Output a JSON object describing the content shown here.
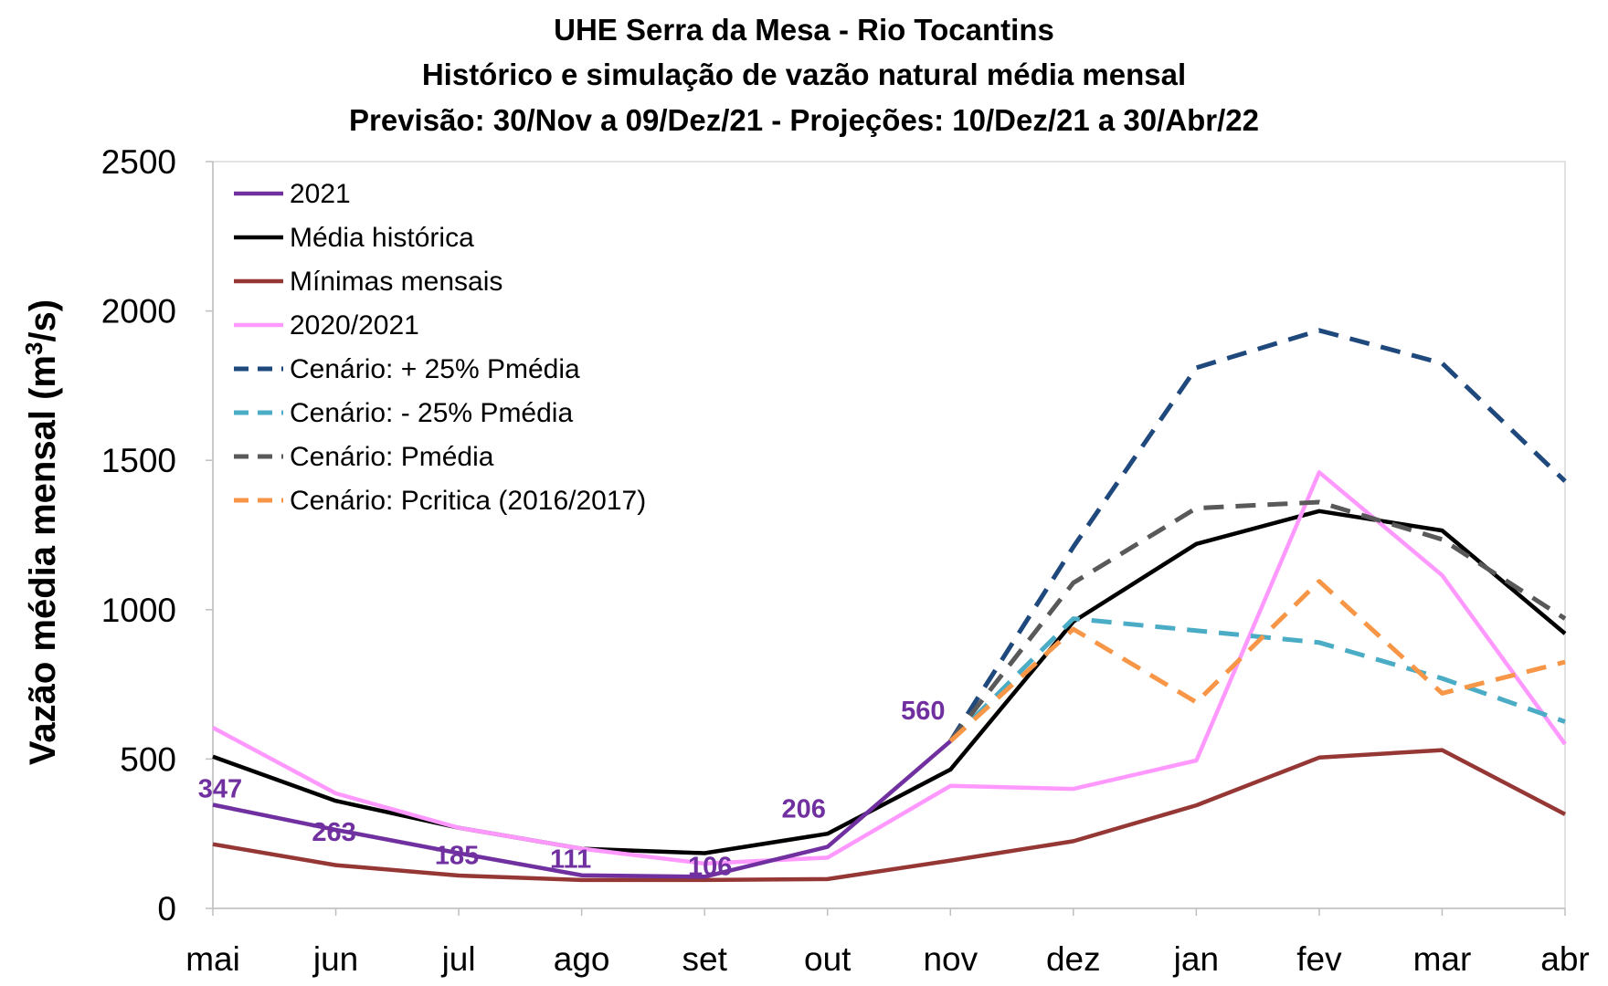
{
  "chart_data": {
    "type": "line",
    "title": [
      "UHE Serra da Mesa - Rio Tocantins",
      "Histórico e simulação de vazão natural média mensal",
      "Previsão: 30/Nov a 09/Dez/21 - Projeções:  10/Dez/21 a 30/Abr/22"
    ],
    "xlabel": "",
    "ylabel_prefix": "Vazão média mensal (m",
    "ylabel_sup": "3",
    "ylabel_suffix": "/s)",
    "ylim": [
      0,
      2500
    ],
    "yticks": [
      0,
      500,
      1000,
      1500,
      2000,
      2500
    ],
    "categories": [
      "mai",
      "jun",
      "jul",
      "ago",
      "set",
      "out",
      "nov",
      "dez",
      "jan",
      "fev",
      "mar",
      "abr"
    ],
    "grid": false,
    "legend_position": "top-left",
    "series": [
      {
        "name": "2021",
        "color": "#7030a0",
        "dash": "solid",
        "values": [
          347,
          263,
          185,
          111,
          106,
          206,
          560,
          null,
          null,
          null,
          null,
          null
        ],
        "labels": [
          "347",
          "263",
          "185",
          "111",
          "106",
          "206",
          "560",
          null,
          null,
          null,
          null,
          null
        ]
      },
      {
        "name": "Média histórica",
        "color": "#000000",
        "dash": "solid",
        "values": [
          508,
          360,
          270,
          200,
          185,
          250,
          465,
          960,
          1220,
          1330,
          1265,
          920
        ]
      },
      {
        "name": "Mínimas mensais",
        "color": "#953735",
        "dash": "solid",
        "values": [
          215,
          145,
          110,
          95,
          95,
          98,
          160,
          225,
          345,
          505,
          530,
          315
        ]
      },
      {
        "name": "2020/2021",
        "color": "#ff99ff",
        "dash": "solid",
        "values": [
          605,
          385,
          270,
          200,
          150,
          170,
          410,
          400,
          495,
          1460,
          1115,
          550
        ]
      },
      {
        "name": "Cenário: + 25% Pmédia",
        "color": "#1f497d",
        "dash": "dashed",
        "values": [
          null,
          null,
          null,
          null,
          null,
          null,
          560,
          1210,
          1810,
          1935,
          1825,
          1430
        ]
      },
      {
        "name": "Cenário: - 25% Pmédia",
        "color": "#4bacc6",
        "dash": "dashed",
        "values": [
          null,
          null,
          null,
          null,
          null,
          null,
          560,
          970,
          930,
          890,
          770,
          625
        ]
      },
      {
        "name": "Cenário: Pmédia",
        "color": "#595959",
        "dash": "dashed",
        "values": [
          null,
          null,
          null,
          null,
          null,
          null,
          560,
          1090,
          1340,
          1360,
          1235,
          970
        ]
      },
      {
        "name": "Cenário: Pcritica (2016/2017)",
        "color": "#f79646",
        "dash": "dashed",
        "values": [
          null,
          null,
          null,
          null,
          null,
          null,
          560,
          935,
          690,
          1095,
          720,
          825
        ]
      }
    ]
  }
}
